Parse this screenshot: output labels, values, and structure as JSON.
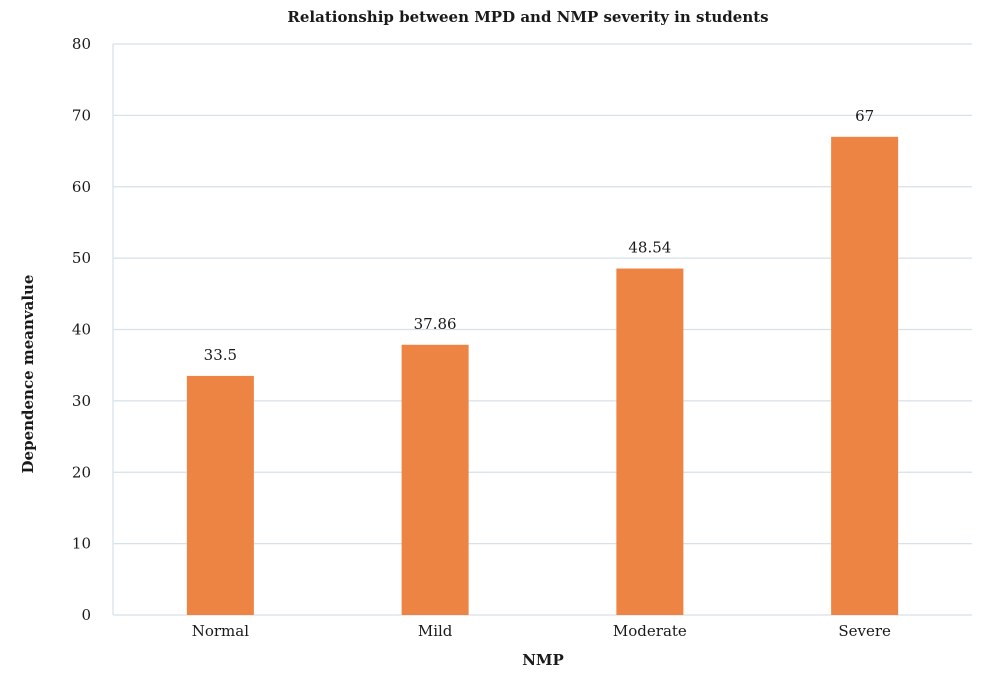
{
  "chart_data": {
    "type": "bar",
    "title": "Relationship between MPD and NMP severity in students",
    "xlabel": "NMP",
    "ylabel": "Dependence meanvalue",
    "categories": [
      "Normal",
      "Mild",
      "Moderate",
      "Severe"
    ],
    "values": [
      33.5,
      37.86,
      48.54,
      67
    ],
    "data_labels": [
      "33.5",
      "37.86",
      "48.54",
      "67"
    ],
    "ylim": [
      0,
      80
    ],
    "yticks": [
      0,
      10,
      20,
      30,
      40,
      50,
      60,
      70,
      80
    ],
    "grid": true,
    "legend": "none",
    "bar_color": "#ee8444",
    "grid_color": "#d6e1e8"
  }
}
